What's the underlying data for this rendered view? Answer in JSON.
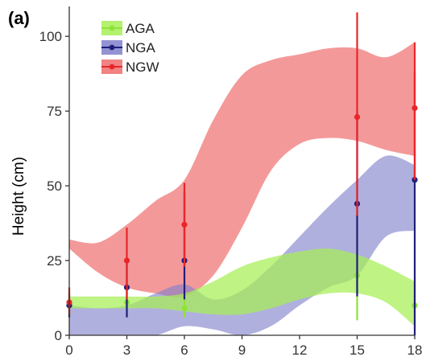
{
  "chart_data": {
    "type": "line",
    "panel_label": "(a)",
    "ylabel": "Height (cm)",
    "xlabel": "",
    "x": [
      0,
      3,
      6,
      9,
      12,
      15,
      18
    ],
    "x_ticks": [
      "0",
      "3",
      "6",
      "9",
      "12",
      "15",
      "18"
    ],
    "y_ticks": [
      "0",
      "25",
      "50",
      "75",
      "100"
    ],
    "xlim": [
      0,
      18
    ],
    "ylim": [
      0,
      110
    ],
    "grid": false,
    "legend_position": "top-left",
    "series": [
      {
        "name": "AGA",
        "color": "#8fe33a",
        "band_fill": "#a6ef55",
        "band_opacity": 0.72,
        "points": [
          {
            "x": 0,
            "y": 10,
            "lo": 6,
            "hi": 15
          },
          {
            "x": 3,
            "y": 11,
            "lo": 6,
            "hi": 17
          },
          {
            "x": 6,
            "y": 9,
            "lo": 6,
            "hi": 12
          },
          {
            "x": 15,
            "y": 20,
            "lo": 5,
            "hi": 36
          },
          {
            "x": 18,
            "y": 10,
            "lo": 3,
            "hi": 17
          }
        ],
        "band": {
          "x": [
            0,
            1.5,
            3,
            4.5,
            6,
            7.5,
            9,
            10.5,
            12,
            13.5,
            15,
            16.5,
            18
          ],
          "upper": [
            13,
            13,
            13,
            13,
            14,
            18,
            23,
            26,
            28,
            29,
            27,
            23,
            18
          ],
          "lower": [
            9,
            9,
            9,
            9,
            8,
            7,
            7,
            9,
            12,
            14,
            14,
            11,
            3
          ]
        }
      },
      {
        "name": "NGA",
        "color": "#1f1f7a",
        "band_fill": "#8080cc",
        "band_opacity": 0.62,
        "points": [
          {
            "x": 0,
            "y": 10,
            "lo": 6,
            "hi": 14
          },
          {
            "x": 3,
            "y": 16,
            "lo": 6,
            "hi": 26
          },
          {
            "x": 6,
            "y": 25,
            "lo": 12,
            "hi": 48
          },
          {
            "x": 15,
            "y": 44,
            "lo": 13,
            "hi": 75
          },
          {
            "x": 18,
            "y": 52,
            "lo": 0,
            "hi": 88
          }
        ],
        "band": {
          "x": [
            0,
            1.5,
            3,
            4.5,
            6,
            7.5,
            9,
            10.5,
            12,
            13.5,
            15,
            16.5,
            18
          ],
          "upper": [
            10,
            9,
            10,
            14,
            17,
            12,
            15,
            23,
            33,
            43,
            52,
            60,
            57
          ],
          "lower": [
            0,
            0,
            0,
            0,
            3,
            2,
            0,
            3,
            10,
            16,
            20,
            33,
            35
          ]
        }
      },
      {
        "name": "NGW",
        "color": "#e8262a",
        "band_fill": "#ef6d6d",
        "band_opacity": 0.7,
        "points": [
          {
            "x": 0,
            "y": 11,
            "lo": 7,
            "hi": 16
          },
          {
            "x": 3,
            "y": 25,
            "lo": 12,
            "hi": 36
          },
          {
            "x": 6,
            "y": 37,
            "lo": 23,
            "hi": 51
          },
          {
            "x": 15,
            "y": 73,
            "lo": 40,
            "hi": 108
          },
          {
            "x": 18,
            "y": 76,
            "lo": 52,
            "hi": 98
          }
        ],
        "band": {
          "x": [
            0,
            1.5,
            3,
            4.5,
            6,
            7.5,
            9,
            10.5,
            12,
            13.5,
            15,
            16.5,
            18
          ],
          "upper": [
            32,
            31,
            37,
            45,
            52,
            72,
            87,
            92,
            94,
            96,
            96,
            93,
            98
          ],
          "lower": [
            29,
            21,
            16,
            14,
            13,
            20,
            36,
            55,
            64,
            66,
            65,
            62,
            60
          ]
        }
      }
    ]
  }
}
